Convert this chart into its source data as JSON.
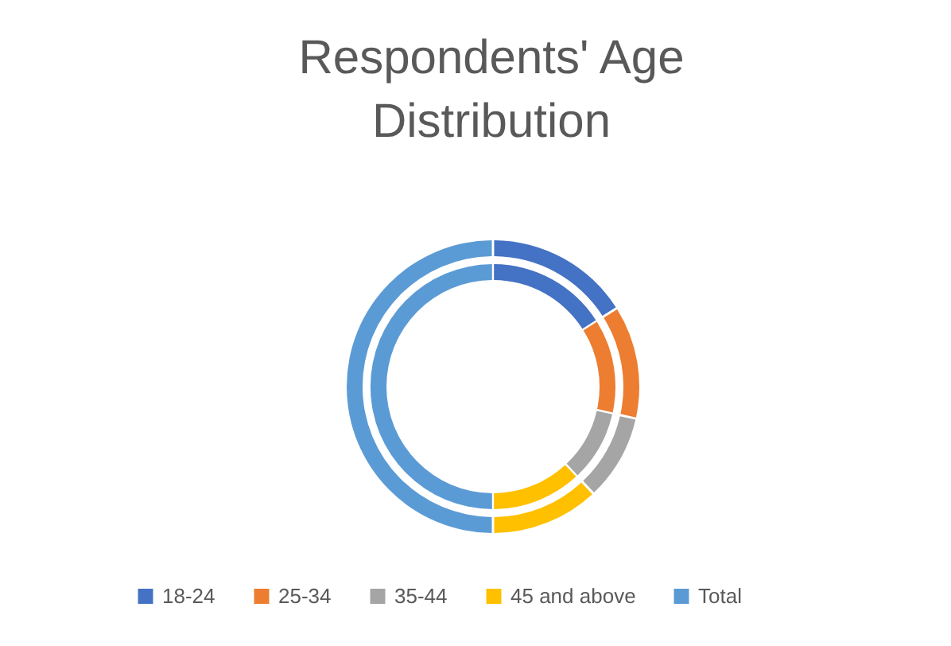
{
  "chart_data": {
    "type": "donut",
    "title": "Respondents' Age Distribution",
    "categories": [
      "18-24",
      "25-34",
      "35-44",
      "45 and above",
      "Total"
    ],
    "colors": [
      "#4472c4",
      "#ed7d31",
      "#a5a5a5",
      "#ffc000",
      "#5b9bd5"
    ],
    "series": [
      {
        "values": [
          16,
          12.5,
          9.5,
          12,
          50
        ]
      },
      {
        "values": [
          16,
          12.5,
          9.5,
          12,
          50
        ]
      }
    ],
    "legend": "bottom"
  }
}
